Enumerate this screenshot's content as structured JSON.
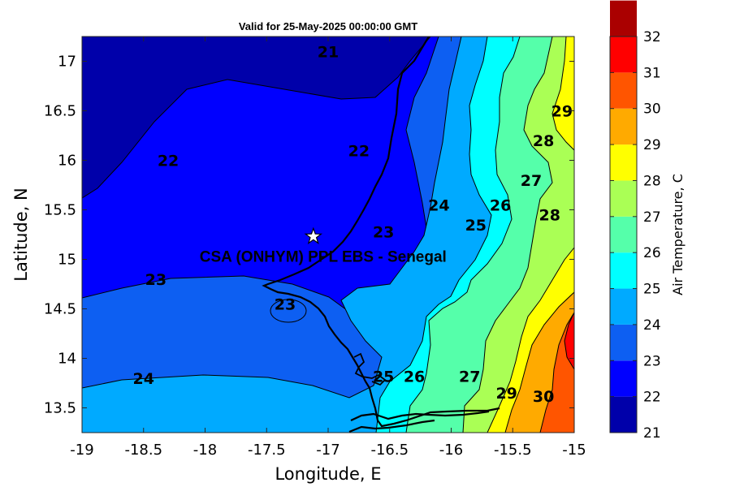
{
  "chart_data": {
    "type": "heatmap",
    "title": "Valid for 25-May-2025 00:00:00 GMT",
    "xlabel": "Longitude, E",
    "ylabel": "Latitude, N",
    "xlim": [
      -19,
      -15
    ],
    "ylim": [
      13.25,
      17.25
    ],
    "x_ticks": [
      "-19",
      "-18.5",
      "-18",
      "-17.5",
      "-17",
      "-16.5",
      "-16",
      "-15.5",
      "-15"
    ],
    "y_ticks": [
      "13.5",
      "14",
      "14.5",
      "15",
      "15.5",
      "16",
      "16.5",
      "17"
    ],
    "colorbar": {
      "label": "Air Temperature, C",
      "range": [
        21,
        32
      ],
      "ticks": [
        "21",
        "22",
        "23",
        "24",
        "25",
        "26",
        "27",
        "28",
        "29",
        "30",
        "31",
        "32"
      ],
      "colors": [
        "#0000aa",
        "#0000ff",
        "#0d5ff2",
        "#00aaff",
        "#00ffff",
        "#55ffaa",
        "#aaff55",
        "#ffff00",
        "#ffaa00",
        "#ff5500",
        "#ff0000",
        "#aa0000"
      ]
    },
    "contour_labels": [
      {
        "text": "21",
        "lon": -17.0,
        "lat": 17.1
      },
      {
        "text": "22",
        "lon": -18.3,
        "lat": 16.0
      },
      {
        "text": "22",
        "lon": -16.75,
        "lat": 16.1
      },
      {
        "text": "23",
        "lon": -18.4,
        "lat": 14.8
      },
      {
        "text": "23",
        "lon": -17.35,
        "lat": 14.55
      },
      {
        "text": "23",
        "lon": -16.55,
        "lat": 15.28
      },
      {
        "text": "24",
        "lon": -18.5,
        "lat": 13.8
      },
      {
        "text": "24",
        "lon": -16.1,
        "lat": 15.55
      },
      {
        "text": "25",
        "lon": -16.55,
        "lat": 13.82
      },
      {
        "text": "25",
        "lon": -15.8,
        "lat": 15.35
      },
      {
        "text": "26",
        "lon": -16.3,
        "lat": 13.82
      },
      {
        "text": "26",
        "lon": -15.6,
        "lat": 15.55
      },
      {
        "text": "27",
        "lon": -15.85,
        "lat": 13.82
      },
      {
        "text": "27",
        "lon": -15.35,
        "lat": 15.8
      },
      {
        "text": "28",
        "lon": -15.2,
        "lat": 15.45
      },
      {
        "text": "28",
        "lon": -15.25,
        "lat": 16.2
      },
      {
        "text": "29",
        "lon": -15.1,
        "lat": 16.5
      },
      {
        "text": "29",
        "lon": -15.55,
        "lat": 13.65
      },
      {
        "text": "30",
        "lon": -15.25,
        "lat": 13.62
      }
    ],
    "site": {
      "label": "CSA (ONHYM) PPL EBS  - Senegal",
      "lon": -17.12,
      "lat": 15.23
    }
  }
}
